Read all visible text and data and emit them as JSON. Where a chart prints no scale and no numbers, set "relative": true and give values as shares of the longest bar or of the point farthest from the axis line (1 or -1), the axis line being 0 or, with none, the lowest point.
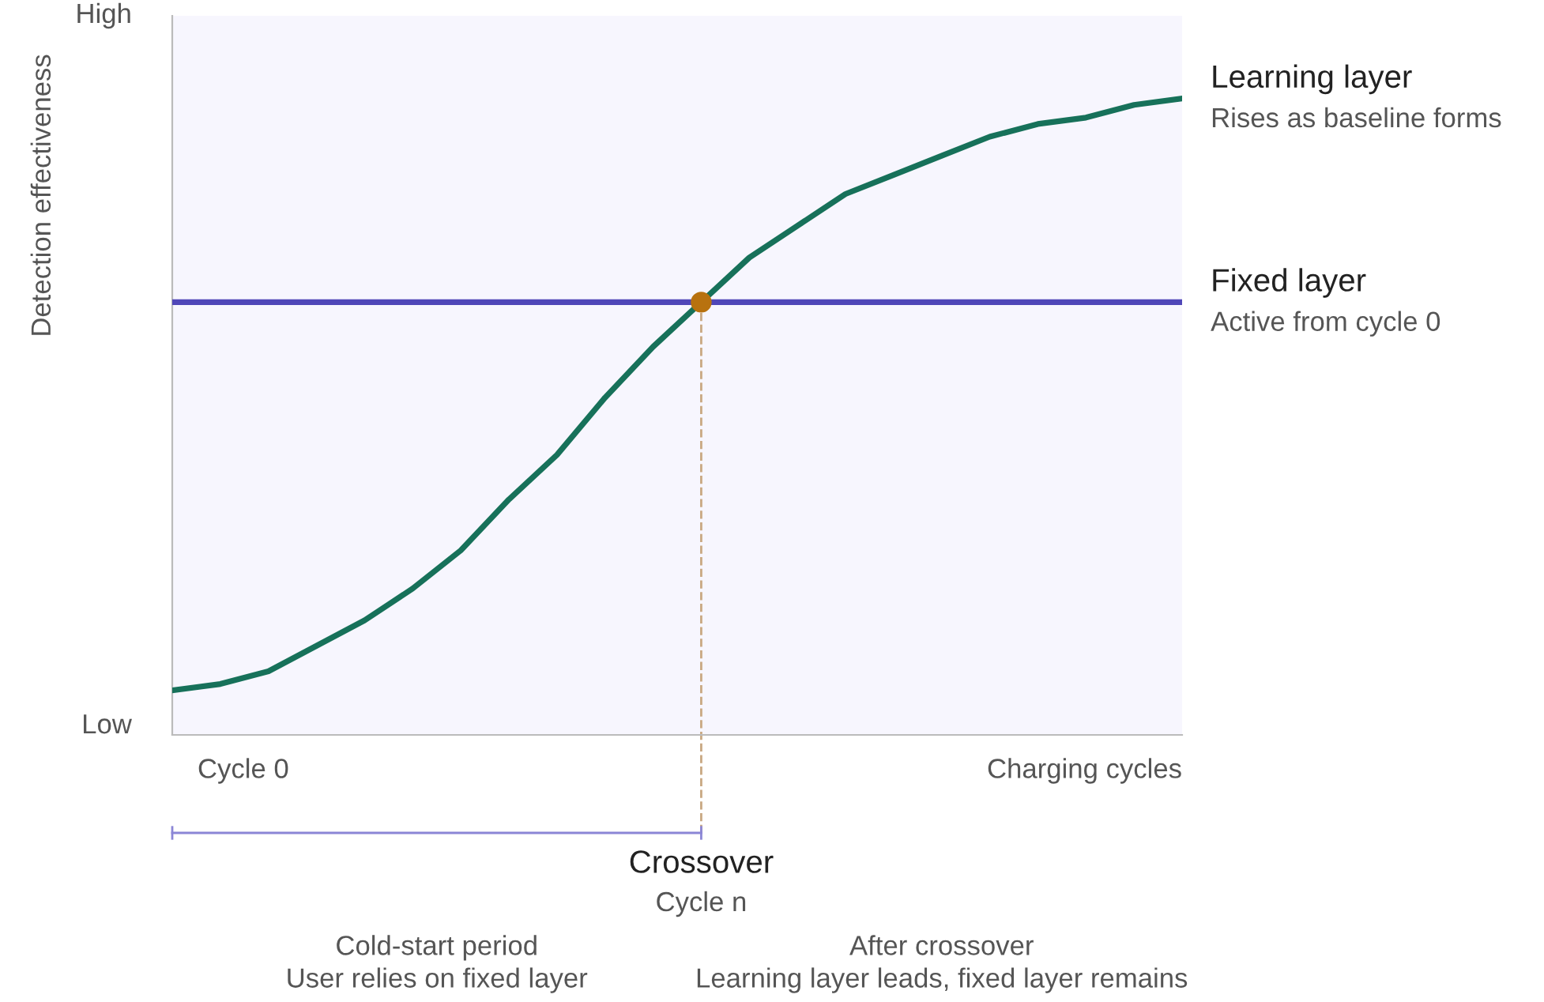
{
  "chart_data": {
    "type": "line",
    "relative": true,
    "xlabel": "Charging cycles",
    "ylabel": "Detection effectiveness",
    "categories": [
      null,
      null,
      null,
      null,
      null,
      null,
      null,
      null,
      null,
      null,
      null,
      null,
      null,
      null,
      null,
      null,
      null,
      null,
      null,
      null,
      null,
      null
    ],
    "series": [
      {
        "name": "Learning layer",
        "color": "#17715a",
        "values": [
          0.07,
          0.08,
          0.1,
          0.14,
          0.18,
          0.23,
          0.29,
          0.37,
          0.44,
          0.53,
          0.61,
          0.68,
          0.75,
          0.8,
          0.85,
          0.88,
          0.91,
          0.94,
          0.96,
          0.97,
          0.99,
          1.0
        ]
      },
      {
        "name": "Fixed layer",
        "color": "#4f46b8",
        "values": [
          0.68,
          0.68,
          0.68,
          0.68,
          0.68,
          0.68,
          0.68,
          0.68,
          0.68,
          0.68,
          0.68,
          0.68,
          0.68,
          0.68,
          0.68,
          0.68,
          0.68,
          0.68,
          0.68,
          0.68,
          0.68,
          0.68
        ]
      }
    ],
    "annotations": [
      "High",
      "Low",
      "Cycle 0",
      "Rises as baseline forms",
      "Active from cycle 0",
      "Crossover",
      "Cycle n",
      "Cold-start period\nUser relies on fixed layer",
      "After crossover\nLearning layer leads, fixed layer remains"
    ],
    "legend": false,
    "marker": "none",
    "line_style": "solid"
  }
}
